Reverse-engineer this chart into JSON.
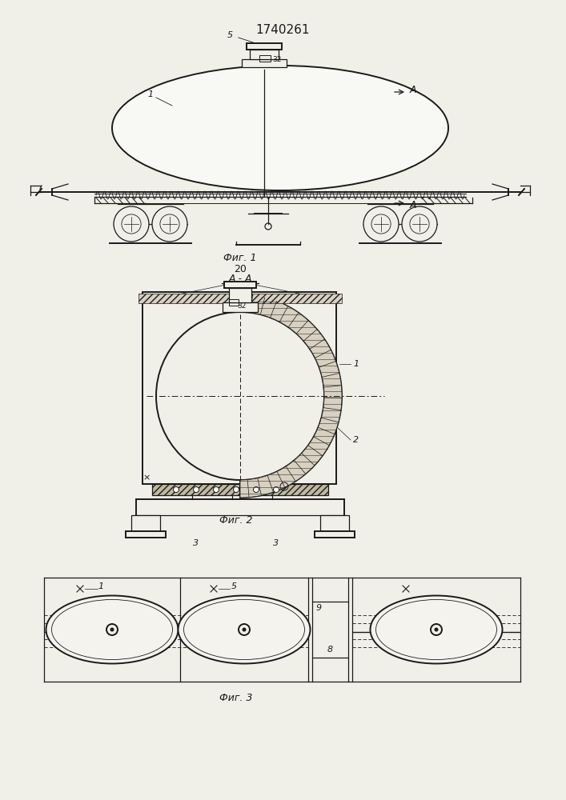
{
  "title": "1740261",
  "bg_color": "#f0efe8",
  "line_color": "#1a1a1a",
  "fig1_label": "Фиг. 1",
  "fig2_label": "Фиг. 2",
  "fig3_label": "Фиг. 3",
  "aa_label": "A - A"
}
